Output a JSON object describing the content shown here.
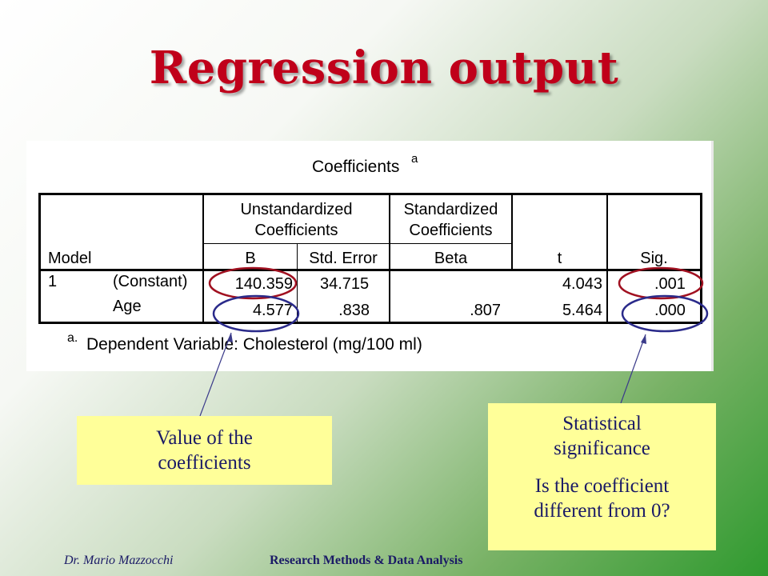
{
  "slide": {
    "title": "Regression output"
  },
  "table": {
    "title": "Coefficients",
    "title_sup": "a",
    "header_group_1": [
      "Unstandardized",
      "Coefficients"
    ],
    "header_group_2": [
      "Standardized",
      "Coefficients"
    ],
    "columns": [
      "Model",
      "B",
      "Std. Error",
      "Beta",
      "t",
      "Sig."
    ],
    "rows": [
      {
        "model": "1",
        "label": "(Constant)",
        "b": "140.359",
        "se": "34.715",
        "beta": "",
        "t": "4.043",
        "sig": ".001"
      },
      {
        "model": "",
        "label": "Age",
        "b": "4.577",
        "se": ".838",
        "beta": ".807",
        "t": "5.464",
        "sig": ".000"
      }
    ],
    "footnote_mark": "a.",
    "footnote": "Dependent Variable: Cholesterol (mg/100 ml)"
  },
  "callouts": {
    "left": [
      "Value of the",
      "coefficients"
    ],
    "right_1": [
      "Statistical",
      "significance"
    ],
    "right_2": [
      "Is the coefficient",
      "different from 0?"
    ]
  },
  "footer": {
    "author": "Dr. Mario Mazzocchi",
    "course": "Research Methods & Data Analysis"
  },
  "colors": {
    "title": "#c0001a",
    "callout_bg": "#ffff99",
    "ellipse_red": "#a01020",
    "ellipse_blue": "#2a2a8a"
  }
}
